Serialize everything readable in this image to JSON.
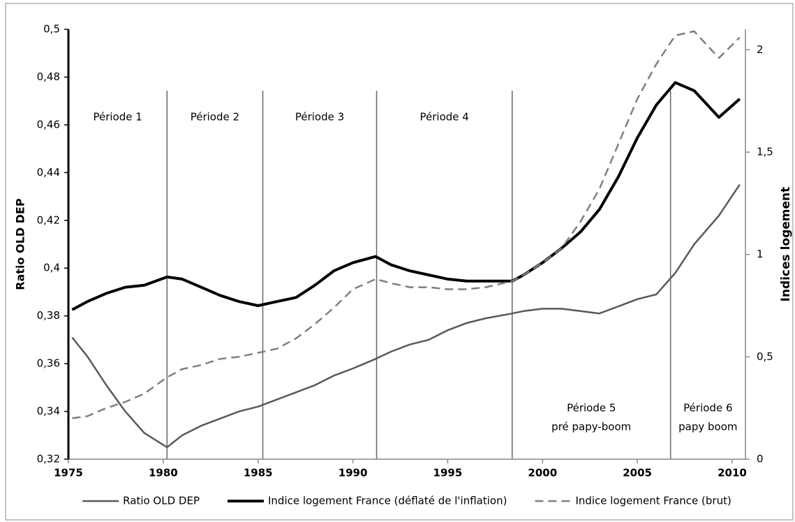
{
  "chart_data": {
    "type": "line",
    "y_label": "Ratio OLD DEP",
    "y2_label": "Indices logement",
    "x": [
      1975.2,
      1976,
      1977,
      1978,
      1979,
      1980.2,
      1981,
      1982,
      1983,
      1984,
      1985,
      1986,
      1987,
      1988,
      1989,
      1990,
      1991.2,
      1992,
      1993,
      1994,
      1995,
      1996,
      1997,
      1998.4,
      1999,
      2000,
      2001,
      2002,
      2003,
      2004,
      2005,
      2006,
      2007,
      2008,
      2009.3,
      2010.4
    ],
    "series": [
      {
        "name": "Ratio OLD DEP",
        "color": "#595959",
        "line_width": 2.5,
        "dashed": false,
        "axis": "y",
        "values": [
          0.371,
          0.363,
          0.351,
          0.34,
          0.331,
          0.325,
          0.33,
          0.334,
          0.337,
          0.34,
          0.342,
          0.345,
          0.348,
          0.351,
          0.355,
          0.358,
          0.362,
          0.365,
          0.368,
          0.37,
          0.374,
          0.377,
          0.379,
          0.381,
          0.382,
          0.383,
          0.383,
          0.382,
          0.381,
          0.384,
          0.387,
          0.389,
          0.398,
          0.41,
          0.422,
          0.435
        ]
      },
      {
        "name": "Indice logement France (déflaté de l'inflation)",
        "color": "#000000",
        "line_width": 4,
        "dashed": false,
        "axis": "y2",
        "values": [
          0.73,
          0.77,
          0.81,
          0.84,
          0.85,
          0.89,
          0.88,
          0.84,
          0.8,
          0.77,
          0.75,
          0.77,
          0.79,
          0.85,
          0.92,
          0.96,
          0.99,
          0.95,
          0.92,
          0.9,
          0.88,
          0.87,
          0.87,
          0.87,
          0.9,
          0.96,
          1.03,
          1.11,
          1.22,
          1.38,
          1.57,
          1.73,
          1.84,
          1.8,
          1.67,
          1.76
        ]
      },
      {
        "name": "Indice logement France (brut)",
        "color": "#7f7f7f",
        "line_width": 2.5,
        "dashed": true,
        "axis": "y2",
        "values": [
          0.2,
          0.21,
          0.25,
          0.28,
          0.32,
          0.4,
          0.44,
          0.46,
          0.49,
          0.5,
          0.52,
          0.54,
          0.59,
          0.66,
          0.74,
          0.83,
          0.88,
          0.86,
          0.84,
          0.84,
          0.83,
          0.83,
          0.84,
          0.87,
          0.9,
          0.96,
          1.03,
          1.16,
          1.32,
          1.54,
          1.76,
          1.93,
          2.07,
          2.09,
          1.96,
          2.06
        ]
      }
    ],
    "xlim": [
      1975,
      2010.7
    ],
    "xticks": [
      1975,
      1980,
      1985,
      1990,
      1995,
      2000,
      2005,
      2010
    ],
    "ylim": [
      0.32,
      0.5
    ],
    "yticks": [
      {
        "value": 0.32,
        "label": "0,32"
      },
      {
        "value": 0.34,
        "label": "0,34"
      },
      {
        "value": 0.36,
        "label": "0,36"
      },
      {
        "value": 0.38,
        "label": "0,38"
      },
      {
        "value": 0.4,
        "label": "0,4"
      },
      {
        "value": 0.42,
        "label": "0,42"
      },
      {
        "value": 0.44,
        "label": "0,44"
      },
      {
        "value": 0.46,
        "label": "0,46"
      },
      {
        "value": 0.48,
        "label": "0,48"
      },
      {
        "value": 0.5,
        "label": "0,5"
      }
    ],
    "y2lim": [
      0,
      2.1
    ],
    "y2ticks": [
      0,
      {
        "value": 0.5,
        "label": "0,5"
      },
      1,
      {
        "value": 1.5,
        "label": "1,5"
      },
      2
    ],
    "period_lines": [
      1980.2,
      1985.25,
      1991.25,
      1998.4,
      2006.75
    ],
    "periods": [
      [
        "Période 1"
      ],
      [
        "Période 2"
      ],
      [
        "Période 3"
      ],
      [
        "Période 4"
      ],
      [
        "Période 5",
        "pré papy-boom"
      ],
      [
        "Période 6",
        "papy boom"
      ]
    ],
    "legend": "bottom"
  }
}
